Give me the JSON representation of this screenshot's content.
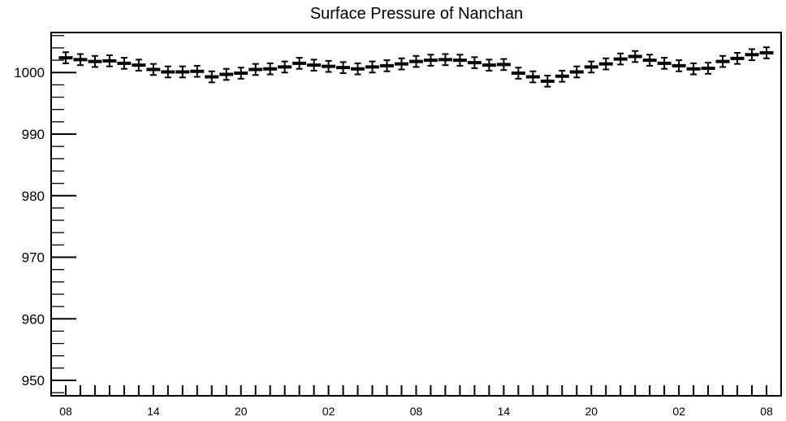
{
  "chart_data": {
    "type": "scatter",
    "title": "Surface Pressure of Nanchan",
    "xlabel": "",
    "ylabel": "",
    "ylim": [
      947.5,
      1006.5
    ],
    "y_ticks": [
      950,
      960,
      970,
      980,
      990,
      1000
    ],
    "x_tick_labels": [
      "08",
      "14",
      "20",
      "02",
      "08",
      "14",
      "20",
      "02",
      "08"
    ],
    "x_tick_label_positions": [
      0,
      6,
      12,
      18,
      24,
      30,
      36,
      42,
      48
    ],
    "x_range": [
      -1,
      49
    ],
    "error_bar": 0.9,
    "series": [
      {
        "x": [
          0,
          1,
          2,
          3,
          4,
          5,
          6,
          7,
          8,
          9,
          10,
          11,
          12,
          13,
          14,
          15,
          16,
          17,
          18,
          19,
          20,
          21,
          22,
          23,
          24,
          25,
          26,
          27,
          28,
          29,
          30,
          31,
          32,
          33,
          34,
          35,
          36,
          37,
          38,
          39,
          40,
          41,
          42,
          43,
          44,
          45,
          46,
          47,
          48
        ],
        "values": [
          1002.4,
          1002.1,
          1001.8,
          1001.9,
          1001.5,
          1001.2,
          1000.5,
          1000.1,
          1000.1,
          1000.2,
          999.3,
          999.7,
          999.9,
          1000.5,
          1000.6,
          1000.9,
          1001.5,
          1001.2,
          1001.0,
          1000.8,
          1000.6,
          1000.9,
          1001.1,
          1001.4,
          1001.8,
          1002.0,
          1002.1,
          1002.0,
          1001.6,
          1001.2,
          1001.3,
          999.9,
          999.3,
          998.6,
          999.4,
          1000.1,
          1000.9,
          1001.4,
          1002.2,
          1002.6,
          1002.0,
          1001.5,
          1001.1,
          1000.6,
          1000.7,
          1001.8,
          1002.3,
          1002.9,
          1003.2
        ]
      }
    ],
    "grid": false,
    "legend": "none",
    "colors": {
      "marker": "#000000",
      "frame": "#000000"
    }
  }
}
